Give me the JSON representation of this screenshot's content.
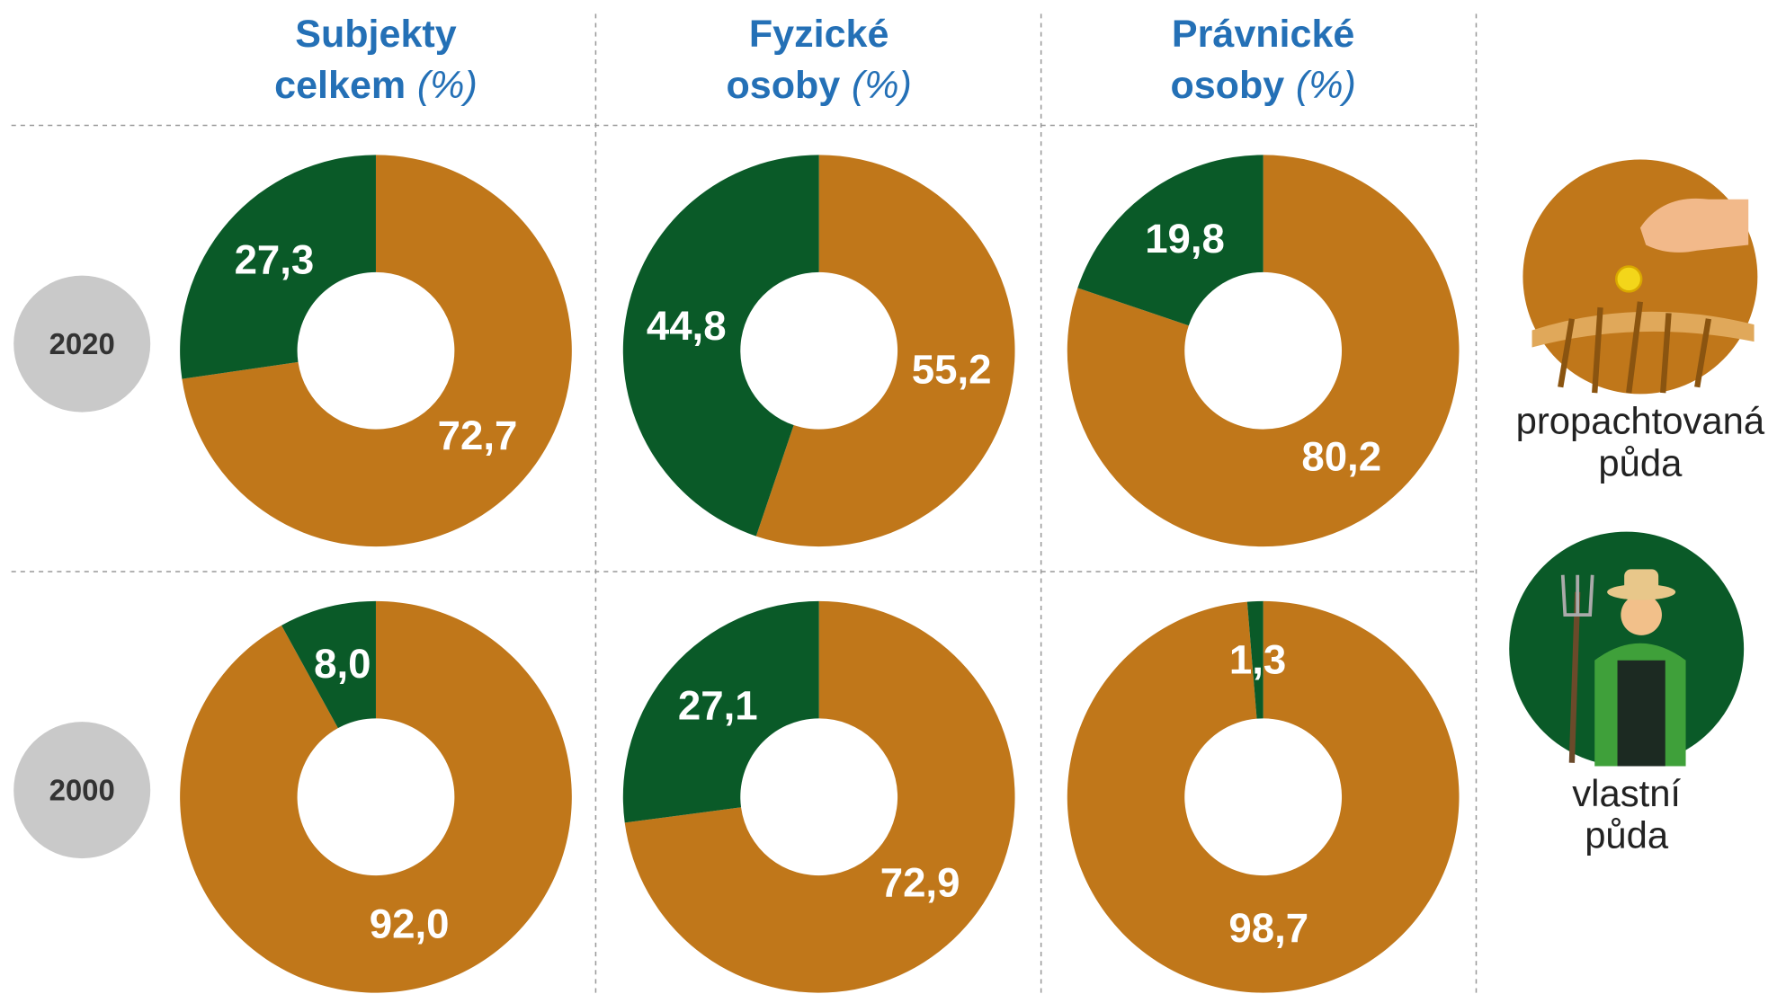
{
  "columns": [
    {
      "line1": "Subjekty",
      "line2": "celkem",
      "unit": "(%)"
    },
    {
      "line1": "Fyzické",
      "line2": "osoby",
      "unit": "(%)"
    },
    {
      "line1": "Právnické",
      "line2": "osoby",
      "unit": "(%)"
    }
  ],
  "rows": [
    "2020",
    "2000"
  ],
  "legend": {
    "names": [
      "propachtovaná půda",
      "vlastní půda"
    ],
    "colors": [
      "#c0771a",
      "#0a5a28"
    ]
  },
  "chart_data": [
    {
      "type": "pie",
      "values": [
        72.7,
        27.3
      ],
      "value_labels": [
        "72,7",
        "27,3"
      ]
    },
    {
      "type": "pie",
      "values": [
        55.2,
        44.8
      ],
      "value_labels": [
        "55,2",
        "44,8"
      ]
    },
    {
      "type": "pie",
      "values": [
        80.2,
        19.8
      ],
      "value_labels": [
        "80,2",
        "19,8"
      ]
    },
    {
      "type": "pie",
      "values": [
        92.0,
        8.0
      ],
      "value_labels": [
        "92,0",
        "8,0"
      ]
    },
    {
      "type": "pie",
      "values": [
        72.9,
        27.1
      ],
      "value_labels": [
        "72,9",
        "27,1"
      ]
    },
    {
      "type": "pie",
      "values": [
        98.7,
        1.3
      ],
      "value_labels": [
        "98,7",
        "1,3"
      ]
    }
  ]
}
